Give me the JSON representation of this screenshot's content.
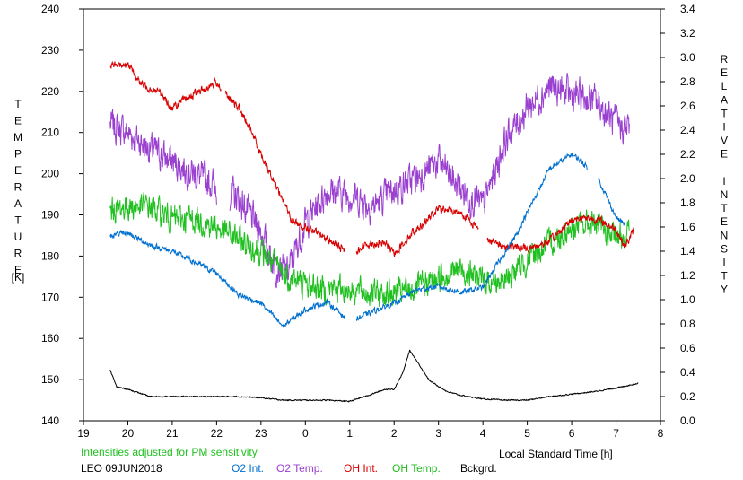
{
  "chart_data": {
    "type": "line",
    "header_left": "LEO 09JUN2018",
    "subtitle": "Intensities adjusted for PM sensitivity",
    "xlabel": "Local Standard Time [h]",
    "ylabel_left_letters": [
      "T",
      "E",
      "M",
      "P",
      "E",
      "R",
      "A",
      "T",
      "U",
      "R",
      "E"
    ],
    "ylabel_left_unit": "[K]",
    "ylabel_right_letters": [
      "R",
      "E",
      "L",
      "A",
      "T",
      "I",
      "V",
      "E",
      "",
      "I",
      "N",
      "T",
      "E",
      "N",
      "S",
      "I",
      "T",
      "Y"
    ],
    "x_ticks": [
      "19",
      "20",
      "21",
      "22",
      "23",
      "0",
      "1",
      "2",
      "3",
      "4",
      "5",
      "6",
      "7",
      "8"
    ],
    "x_range": [
      19,
      32
    ],
    "y_left_ticks": [
      "140",
      "150",
      "160",
      "170",
      "180",
      "190",
      "200",
      "210",
      "220",
      "230",
      "240"
    ],
    "y_left_range": [
      140,
      240
    ],
    "y_right_ticks": [
      "0.0",
      "0.2",
      "0.4",
      "0.6",
      "0.8",
      "1.0",
      "1.2",
      "1.4",
      "1.6",
      "1.8",
      "2.0",
      "2.2",
      "2.4",
      "2.6",
      "2.8",
      "3.0",
      "3.2",
      "3.4"
    ],
    "y_right_range": [
      0,
      3.4
    ],
    "legend": [
      {
        "label": "O2 Int.",
        "color": "#0070d0"
      },
      {
        "label": "O2 Temp.",
        "color": "#9a40d0"
      },
      {
        "label": "OH Int.",
        "color": "#d80000"
      },
      {
        "label": "OH Temp.",
        "color": "#20c020"
      },
      {
        "label": "Bckgrd.",
        "color": "#000000"
      }
    ],
    "series": [
      {
        "key": "o2temp",
        "axis": "left",
        "color": "#9a40d0",
        "noise": 6,
        "gaps": [
          [
            22.0,
            22.3
          ]
        ],
        "x": [
          19.6,
          20.0,
          20.5,
          21.0,
          21.5,
          22.0,
          22.5,
          23.0,
          23.3,
          23.6,
          24.0,
          24.5,
          25.0,
          25.5,
          26.0,
          26.5,
          27.0,
          27.5,
          28.0,
          28.5,
          29.0,
          29.5,
          30.0,
          30.5,
          31.0,
          31.3
        ],
        "y": [
          212,
          210,
          206,
          203,
          200,
          197,
          194,
          186,
          178,
          176,
          188,
          196,
          195,
          192,
          196,
          199,
          203,
          196,
          192,
          208,
          216,
          221,
          219,
          218,
          212,
          211
        ]
      },
      {
        "key": "ohtemp",
        "axis": "left",
        "color": "#20c020",
        "noise": 5,
        "gaps": [],
        "x": [
          19.6,
          20.0,
          20.5,
          21.0,
          21.5,
          22.0,
          22.5,
          23.0,
          23.3,
          23.6,
          24.0,
          24.5,
          25.0,
          25.5,
          26.0,
          26.5,
          27.0,
          27.5,
          28.0,
          28.5,
          29.0,
          29.5,
          30.0,
          30.5,
          31.0,
          31.3
        ],
        "y": [
          191,
          192,
          192,
          189,
          189,
          187,
          184,
          181,
          178,
          175,
          173,
          172,
          172,
          171,
          171,
          172,
          175,
          177,
          174,
          174,
          179,
          183,
          187,
          188,
          184,
          186
        ]
      },
      {
        "key": "ohint",
        "axis": "right",
        "color": "#d80000",
        "noise": 0.05,
        "gaps": [
          [
            22.1,
            22.2
          ],
          [
            24.9,
            25.15
          ],
          [
            27.9,
            28.1
          ]
        ],
        "x": [
          19.6,
          20.0,
          20.3,
          20.7,
          21.0,
          21.5,
          21.8,
          22.0,
          22.3,
          22.5,
          22.8,
          23.0,
          23.4,
          23.7,
          24.0,
          24.5,
          25.0,
          25.4,
          25.8,
          26.0,
          26.4,
          26.8,
          27.0,
          27.5,
          27.8,
          28.2,
          28.5,
          29.0,
          29.5,
          30.0,
          30.3,
          30.6,
          31.0,
          31.2,
          31.4
        ],
        "y": [
          2.93,
          2.95,
          2.78,
          2.72,
          2.58,
          2.7,
          2.75,
          2.8,
          2.65,
          2.58,
          2.38,
          2.2,
          1.9,
          1.65,
          1.6,
          1.5,
          1.38,
          1.46,
          1.47,
          1.38,
          1.55,
          1.68,
          1.75,
          1.72,
          1.62,
          1.48,
          1.44,
          1.42,
          1.48,
          1.66,
          1.68,
          1.66,
          1.58,
          1.44,
          1.57
        ]
      },
      {
        "key": "o2int",
        "axis": "right",
        "color": "#0070d0",
        "noise": 0.035,
        "gaps": [
          [
            24.9,
            25.15
          ],
          [
            30.35,
            30.6
          ]
        ],
        "x": [
          19.6,
          20.0,
          20.5,
          21.0,
          21.5,
          22.0,
          22.5,
          23.0,
          23.5,
          24.0,
          24.5,
          25.0,
          25.5,
          26.0,
          26.5,
          27.0,
          27.5,
          28.0,
          28.3,
          28.7,
          29.0,
          29.5,
          30.0,
          30.2,
          30.6,
          31.0,
          31.2
        ],
        "y": [
          1.53,
          1.55,
          1.45,
          1.4,
          1.31,
          1.22,
          1.04,
          0.97,
          0.78,
          0.92,
          0.98,
          0.82,
          0.9,
          0.97,
          1.08,
          1.11,
          1.06,
          1.1,
          1.28,
          1.5,
          1.72,
          2.08,
          2.2,
          2.15,
          2.0,
          1.68,
          1.62
        ]
      },
      {
        "key": "bckgrd",
        "axis": "right",
        "color": "#000000",
        "noise": 0.007,
        "gaps": [],
        "x": [
          19.6,
          19.75,
          20.0,
          20.5,
          21.0,
          21.5,
          22.0,
          22.5,
          23.0,
          23.5,
          24.0,
          24.5,
          25.0,
          25.5,
          25.8,
          26.0,
          26.2,
          26.35,
          26.5,
          26.8,
          27.2,
          27.5,
          28.0,
          28.5,
          29.0,
          29.5,
          30.0,
          30.5,
          31.0,
          31.5
        ],
        "y": [
          0.42,
          0.28,
          0.26,
          0.2,
          0.2,
          0.2,
          0.2,
          0.2,
          0.19,
          0.17,
          0.17,
          0.17,
          0.16,
          0.22,
          0.26,
          0.26,
          0.4,
          0.58,
          0.5,
          0.33,
          0.24,
          0.21,
          0.18,
          0.17,
          0.17,
          0.2,
          0.22,
          0.24,
          0.27,
          0.31
        ]
      }
    ]
  }
}
